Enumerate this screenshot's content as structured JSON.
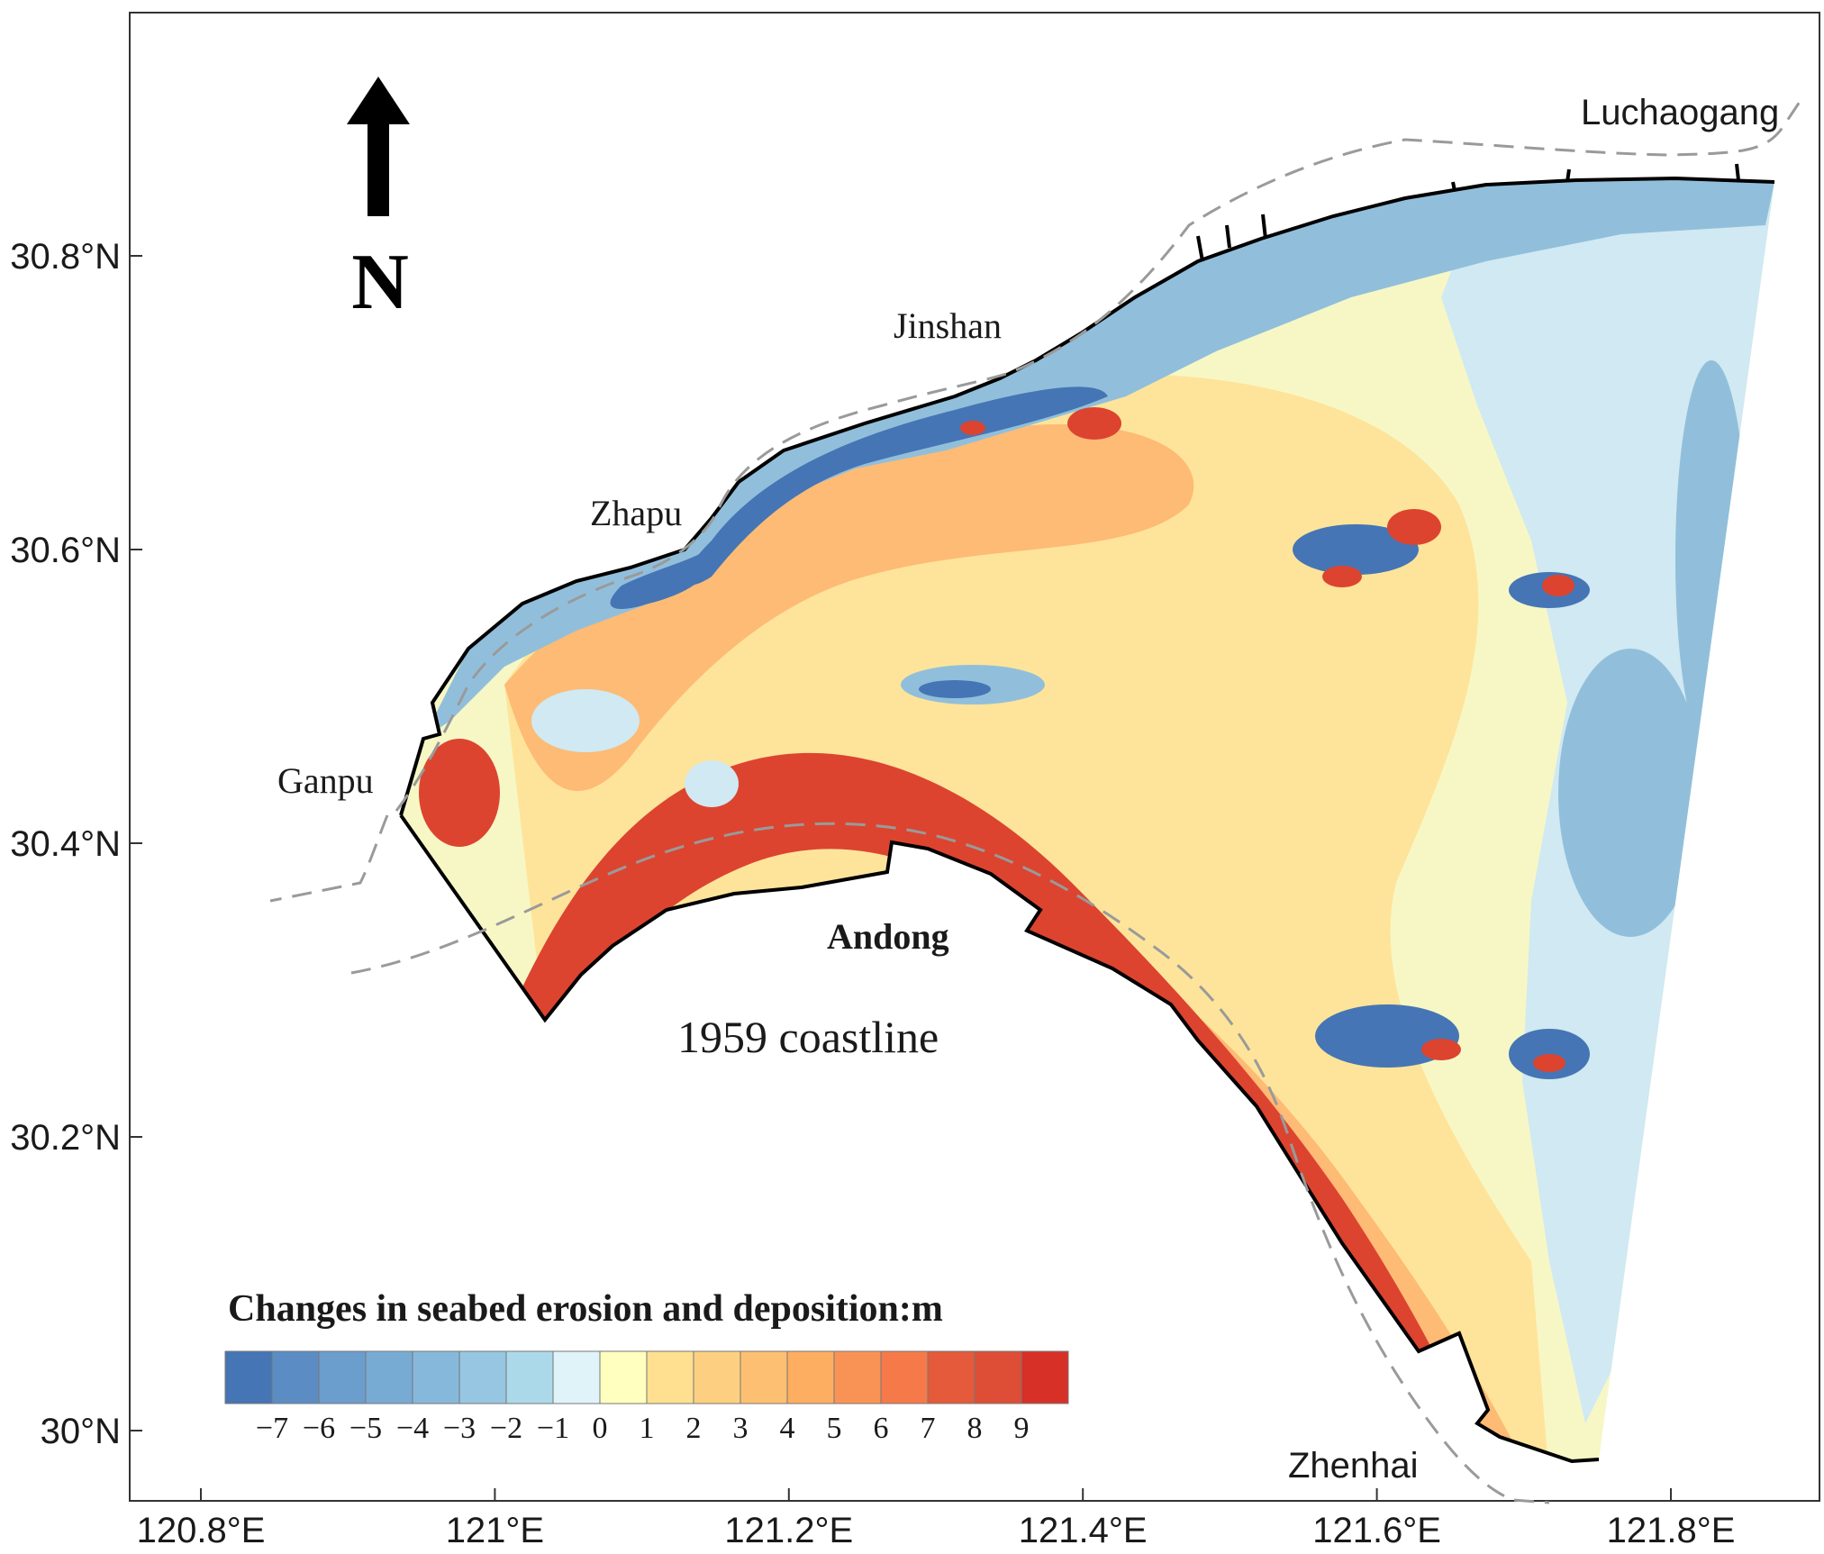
{
  "map": {
    "x_axis": {
      "ticks": [
        {
          "lon": 120.8,
          "label": "120.8°E"
        },
        {
          "lon": 121.0,
          "label": "121°E"
        },
        {
          "lon": 121.2,
          "label": "121.2°E"
        },
        {
          "lon": 121.4,
          "label": "121.4°E"
        },
        {
          "lon": 121.6,
          "label": "121.6°E"
        },
        {
          "lon": 121.8,
          "label": "121.8°E"
        }
      ]
    },
    "y_axis": {
      "ticks": [
        {
          "lat": 30.8,
          "label": "30.8°N"
        },
        {
          "lat": 30.6,
          "label": "30.6°N"
        },
        {
          "lat": 30.4,
          "label": "30.4°N"
        },
        {
          "lat": 30.2,
          "label": "30.2°N"
        },
        {
          "lat": 30.0,
          "label": "30°N"
        }
      ]
    },
    "north_arrow": {
      "letter": "N"
    },
    "places": {
      "luchaogang": "Luchaogang",
      "jinshan": "Jinshan",
      "zhapu": "Zhapu",
      "ganpu": "Ganpu",
      "andong": "Andong",
      "zhenhai": "Zhenhai"
    },
    "coastline_1959_label": "1959 coastline",
    "legend": {
      "title": "Changes in seabed erosion and deposition:m",
      "colors": [
        "#4575b4",
        "#5b8dc4",
        "#6b9dcd",
        "#78abd4",
        "#86b8db",
        "#96c6e2",
        "#abd9e9",
        "#e0f3f8",
        "#ffffbf",
        "#fee090",
        "#fdd081",
        "#fdc072",
        "#fdae61",
        "#f99355",
        "#f67a49",
        "#e45a3a",
        "#de4d35",
        "#d73027"
      ],
      "labels": [
        "−7",
        "−6",
        "−5",
        "−4",
        "−3",
        "−2",
        "−1",
        "0",
        "1",
        "2",
        "3",
        "4",
        "5",
        "6",
        "7",
        "8",
        "9"
      ]
    },
    "palette": {
      "deep_erosion": "#4575b4",
      "erosion": "#91bfdb",
      "light_erosion": "#d0e9f2",
      "neutral": "#f7f7c6",
      "light_deposition": "#fee49a",
      "deposition": "#fdbb75",
      "strong_deposition": "#f08a52",
      "deep_deposition": "#dc4430"
    }
  }
}
